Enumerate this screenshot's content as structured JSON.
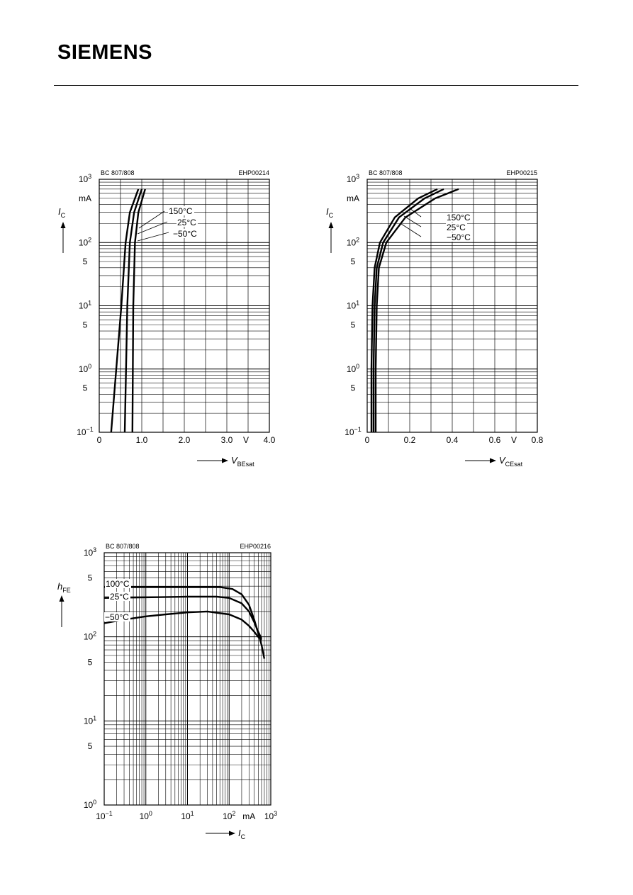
{
  "header": {
    "brand": "SIEMENS"
  },
  "chart_data": [
    {
      "type": "line",
      "part": "BC 807/808",
      "code": "EHP00214",
      "x_scale": "linear",
      "y_scale": "log",
      "xlim": [
        0,
        4.0
      ],
      "ylim": [
        0.1,
        1000
      ],
      "x_ticks": [
        "0",
        "1.0",
        "2.0",
        "3.0",
        "V",
        "4.0"
      ],
      "y_ticks": [
        {
          "v": 1000,
          "base": "10",
          "exp": "3"
        },
        {
          "v": 500,
          "base": "mA",
          "exp": ""
        },
        {
          "v": 100,
          "base": "10",
          "exp": "2"
        },
        {
          "v": 50,
          "base": "5",
          "exp": ""
        },
        {
          "v": 10,
          "base": "10",
          "exp": "1"
        },
        {
          "v": 5,
          "base": "5",
          "exp": ""
        },
        {
          "v": 1,
          "base": "10",
          "exp": "0"
        },
        {
          "v": 0.5,
          "base": "5",
          "exp": ""
        },
        {
          "v": 0.1,
          "base": "10",
          "exp": "−1"
        }
      ],
      "ylabel": {
        "main": "I",
        "sub": "C"
      },
      "xlabel": {
        "main": "V",
        "sub": "BEsat"
      },
      "grid": true,
      "series": [
        {
          "name": "150°C",
          "points": [
            [
              0.28,
              0.1
            ],
            [
              0.4,
              1
            ],
            [
              0.52,
              10
            ],
            [
              0.62,
              100
            ],
            [
              0.72,
              300
            ],
            [
              0.92,
              700
            ]
          ]
        },
        {
          "name": "25°C",
          "points": [
            [
              0.6,
              0.1
            ],
            [
              0.63,
              1
            ],
            [
              0.66,
              10
            ],
            [
              0.72,
              100
            ],
            [
              0.82,
              300
            ],
            [
              1.0,
              700
            ]
          ]
        },
        {
          "name": "−50°C",
          "points": [
            [
              0.78,
              0.1
            ],
            [
              0.79,
              1
            ],
            [
              0.8,
              10
            ],
            [
              0.84,
              100
            ],
            [
              0.92,
              300
            ],
            [
              1.08,
              700
            ]
          ]
        }
      ]
    },
    {
      "type": "line",
      "part": "BC 807/808",
      "code": "EHP00215",
      "x_scale": "linear",
      "y_scale": "log",
      "xlim": [
        0,
        0.8
      ],
      "ylim": [
        0.1,
        1000
      ],
      "x_ticks": [
        "0",
        "0.2",
        "0.4",
        "0.6",
        "V",
        "0.8"
      ],
      "y_ticks": [
        {
          "v": 1000,
          "base": "10",
          "exp": "3"
        },
        {
          "v": 500,
          "base": "mA",
          "exp": ""
        },
        {
          "v": 100,
          "base": "10",
          "exp": "2"
        },
        {
          "v": 50,
          "base": "5",
          "exp": ""
        },
        {
          "v": 10,
          "base": "10",
          "exp": "1"
        },
        {
          "v": 5,
          "base": "5",
          "exp": ""
        },
        {
          "v": 1,
          "base": "10",
          "exp": "0"
        },
        {
          "v": 0.5,
          "base": "5",
          "exp": ""
        },
        {
          "v": 0.1,
          "base": "10",
          "exp": "−1"
        }
      ],
      "ylabel": {
        "main": "I",
        "sub": "C"
      },
      "xlabel": {
        "main": "V",
        "sub": "CEsat"
      },
      "grid": true,
      "series": [
        {
          "name": "150°C",
          "points": [
            [
              0.02,
              0.1
            ],
            [
              0.02,
              1
            ],
            [
              0.025,
              10
            ],
            [
              0.035,
              40
            ],
            [
              0.06,
              100
            ],
            [
              0.13,
              250
            ],
            [
              0.24,
              500
            ],
            [
              0.33,
              700
            ]
          ]
        },
        {
          "name": "25°C",
          "points": [
            [
              0.03,
              0.1
            ],
            [
              0.03,
              1
            ],
            [
              0.035,
              10
            ],
            [
              0.045,
              40
            ],
            [
              0.075,
              100
            ],
            [
              0.15,
              250
            ],
            [
              0.27,
              500
            ],
            [
              0.36,
              700
            ]
          ]
        },
        {
          "name": "−50°C",
          "points": [
            [
              0.04,
              0.1
            ],
            [
              0.04,
              1
            ],
            [
              0.045,
              10
            ],
            [
              0.055,
              40
            ],
            [
              0.09,
              100
            ],
            [
              0.18,
              250
            ],
            [
              0.32,
              500
            ],
            [
              0.43,
              700
            ]
          ]
        }
      ]
    },
    {
      "type": "line",
      "part": "BC 807/808",
      "code": "EHP00216",
      "x_scale": "log",
      "y_scale": "log",
      "xlim": [
        0.1,
        1000
      ],
      "ylim": [
        1,
        1000
      ],
      "x_ticks": [
        {
          "v": 0.1,
          "base": "10",
          "exp": "−1"
        },
        {
          "v": 1,
          "base": "10",
          "exp": "0"
        },
        {
          "v": 10,
          "base": "10",
          "exp": "1"
        },
        {
          "v": 100,
          "base": "10",
          "exp": "2"
        },
        {
          "v": 300,
          "base": "mA",
          "exp": ""
        },
        {
          "v": 1000,
          "base": "10",
          "exp": "3"
        }
      ],
      "y_ticks": [
        {
          "v": 1000,
          "base": "10",
          "exp": "3"
        },
        {
          "v": 500,
          "base": "5",
          "exp": ""
        },
        {
          "v": 100,
          "base": "10",
          "exp": "2"
        },
        {
          "v": 50,
          "base": "5",
          "exp": ""
        },
        {
          "v": 10,
          "base": "10",
          "exp": "1"
        },
        {
          "v": 5,
          "base": "5",
          "exp": ""
        },
        {
          "v": 1,
          "base": "10",
          "exp": "0"
        }
      ],
      "ylabel": {
        "main": "h",
        "sub": "FE"
      },
      "xlabel": {
        "main": "I",
        "sub": "C"
      },
      "grid": true,
      "series": [
        {
          "name": "100°C",
          "points": [
            [
              0.1,
              390
            ],
            [
              1,
              390
            ],
            [
              10,
              390
            ],
            [
              60,
              390
            ],
            [
              120,
              370
            ],
            [
              200,
              320
            ],
            [
              300,
              240
            ],
            [
              400,
              160
            ],
            [
              500,
              110
            ],
            [
              600,
              80
            ],
            [
              700,
              55
            ]
          ]
        },
        {
          "name": "25°C",
          "points": [
            [
              0.1,
              290
            ],
            [
              1,
              295
            ],
            [
              10,
              300
            ],
            [
              50,
              300
            ],
            [
              100,
              290
            ],
            [
              200,
              250
            ],
            [
              300,
              200
            ],
            [
              400,
              150
            ],
            [
              500,
              115
            ],
            [
              600,
              95
            ]
          ]
        },
        {
          "name": "−50°C",
          "points": [
            [
              0.1,
              145
            ],
            [
              0.3,
              160
            ],
            [
              1,
              175
            ],
            [
              3,
              185
            ],
            [
              10,
              195
            ],
            [
              30,
              200
            ],
            [
              100,
              185
            ],
            [
              200,
              160
            ],
            [
              300,
              135
            ],
            [
              400,
              115
            ],
            [
              500,
              100
            ],
            [
              600,
              92
            ]
          ]
        }
      ]
    }
  ]
}
